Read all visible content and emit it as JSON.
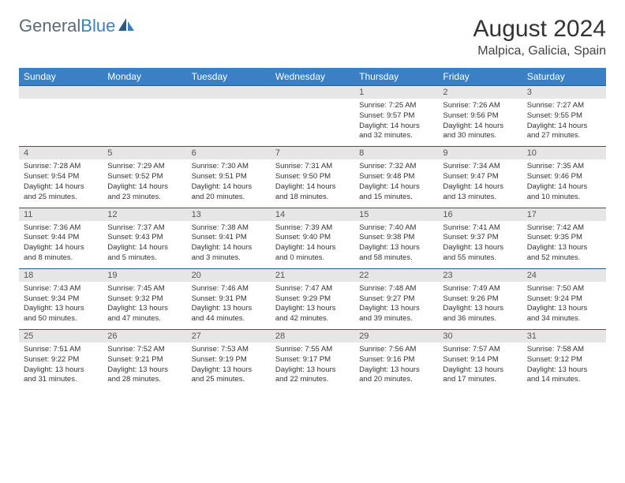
{
  "logo": {
    "text1": "General",
    "text2": "Blue"
  },
  "title": "August 2024",
  "location": "Malpica, Galicia, Spain",
  "colors": {
    "header_bg": "#3b7fc4",
    "header_text": "#ffffff",
    "day_num_bg": "#e6e6e6",
    "border": "#2a5a8a",
    "logo_gray": "#5a6a7a",
    "logo_blue": "#3b7fc4"
  },
  "weekdays": [
    "Sunday",
    "Monday",
    "Tuesday",
    "Wednesday",
    "Thursday",
    "Friday",
    "Saturday"
  ],
  "days": [
    {
      "n": "",
      "sunrise": "",
      "sunset": "",
      "daylight": ""
    },
    {
      "n": "",
      "sunrise": "",
      "sunset": "",
      "daylight": ""
    },
    {
      "n": "",
      "sunrise": "",
      "sunset": "",
      "daylight": ""
    },
    {
      "n": "",
      "sunrise": "",
      "sunset": "",
      "daylight": ""
    },
    {
      "n": "1",
      "sunrise": "Sunrise: 7:25 AM",
      "sunset": "Sunset: 9:57 PM",
      "daylight": "Daylight: 14 hours and 32 minutes."
    },
    {
      "n": "2",
      "sunrise": "Sunrise: 7:26 AM",
      "sunset": "Sunset: 9:56 PM",
      "daylight": "Daylight: 14 hours and 30 minutes."
    },
    {
      "n": "3",
      "sunrise": "Sunrise: 7:27 AM",
      "sunset": "Sunset: 9:55 PM",
      "daylight": "Daylight: 14 hours and 27 minutes."
    },
    {
      "n": "4",
      "sunrise": "Sunrise: 7:28 AM",
      "sunset": "Sunset: 9:54 PM",
      "daylight": "Daylight: 14 hours and 25 minutes."
    },
    {
      "n": "5",
      "sunrise": "Sunrise: 7:29 AM",
      "sunset": "Sunset: 9:52 PM",
      "daylight": "Daylight: 14 hours and 23 minutes."
    },
    {
      "n": "6",
      "sunrise": "Sunrise: 7:30 AM",
      "sunset": "Sunset: 9:51 PM",
      "daylight": "Daylight: 14 hours and 20 minutes."
    },
    {
      "n": "7",
      "sunrise": "Sunrise: 7:31 AM",
      "sunset": "Sunset: 9:50 PM",
      "daylight": "Daylight: 14 hours and 18 minutes."
    },
    {
      "n": "8",
      "sunrise": "Sunrise: 7:32 AM",
      "sunset": "Sunset: 9:48 PM",
      "daylight": "Daylight: 14 hours and 15 minutes."
    },
    {
      "n": "9",
      "sunrise": "Sunrise: 7:34 AM",
      "sunset": "Sunset: 9:47 PM",
      "daylight": "Daylight: 14 hours and 13 minutes."
    },
    {
      "n": "10",
      "sunrise": "Sunrise: 7:35 AM",
      "sunset": "Sunset: 9:46 PM",
      "daylight": "Daylight: 14 hours and 10 minutes."
    },
    {
      "n": "11",
      "sunrise": "Sunrise: 7:36 AM",
      "sunset": "Sunset: 9:44 PM",
      "daylight": "Daylight: 14 hours and 8 minutes."
    },
    {
      "n": "12",
      "sunrise": "Sunrise: 7:37 AM",
      "sunset": "Sunset: 9:43 PM",
      "daylight": "Daylight: 14 hours and 5 minutes."
    },
    {
      "n": "13",
      "sunrise": "Sunrise: 7:38 AM",
      "sunset": "Sunset: 9:41 PM",
      "daylight": "Daylight: 14 hours and 3 minutes."
    },
    {
      "n": "14",
      "sunrise": "Sunrise: 7:39 AM",
      "sunset": "Sunset: 9:40 PM",
      "daylight": "Daylight: 14 hours and 0 minutes."
    },
    {
      "n": "15",
      "sunrise": "Sunrise: 7:40 AM",
      "sunset": "Sunset: 9:38 PM",
      "daylight": "Daylight: 13 hours and 58 minutes."
    },
    {
      "n": "16",
      "sunrise": "Sunrise: 7:41 AM",
      "sunset": "Sunset: 9:37 PM",
      "daylight": "Daylight: 13 hours and 55 minutes."
    },
    {
      "n": "17",
      "sunrise": "Sunrise: 7:42 AM",
      "sunset": "Sunset: 9:35 PM",
      "daylight": "Daylight: 13 hours and 52 minutes."
    },
    {
      "n": "18",
      "sunrise": "Sunrise: 7:43 AM",
      "sunset": "Sunset: 9:34 PM",
      "daylight": "Daylight: 13 hours and 50 minutes."
    },
    {
      "n": "19",
      "sunrise": "Sunrise: 7:45 AM",
      "sunset": "Sunset: 9:32 PM",
      "daylight": "Daylight: 13 hours and 47 minutes."
    },
    {
      "n": "20",
      "sunrise": "Sunrise: 7:46 AM",
      "sunset": "Sunset: 9:31 PM",
      "daylight": "Daylight: 13 hours and 44 minutes."
    },
    {
      "n": "21",
      "sunrise": "Sunrise: 7:47 AM",
      "sunset": "Sunset: 9:29 PM",
      "daylight": "Daylight: 13 hours and 42 minutes."
    },
    {
      "n": "22",
      "sunrise": "Sunrise: 7:48 AM",
      "sunset": "Sunset: 9:27 PM",
      "daylight": "Daylight: 13 hours and 39 minutes."
    },
    {
      "n": "23",
      "sunrise": "Sunrise: 7:49 AM",
      "sunset": "Sunset: 9:26 PM",
      "daylight": "Daylight: 13 hours and 36 minutes."
    },
    {
      "n": "24",
      "sunrise": "Sunrise: 7:50 AM",
      "sunset": "Sunset: 9:24 PM",
      "daylight": "Daylight: 13 hours and 34 minutes."
    },
    {
      "n": "25",
      "sunrise": "Sunrise: 7:51 AM",
      "sunset": "Sunset: 9:22 PM",
      "daylight": "Daylight: 13 hours and 31 minutes."
    },
    {
      "n": "26",
      "sunrise": "Sunrise: 7:52 AM",
      "sunset": "Sunset: 9:21 PM",
      "daylight": "Daylight: 13 hours and 28 minutes."
    },
    {
      "n": "27",
      "sunrise": "Sunrise: 7:53 AM",
      "sunset": "Sunset: 9:19 PM",
      "daylight": "Daylight: 13 hours and 25 minutes."
    },
    {
      "n": "28",
      "sunrise": "Sunrise: 7:55 AM",
      "sunset": "Sunset: 9:17 PM",
      "daylight": "Daylight: 13 hours and 22 minutes."
    },
    {
      "n": "29",
      "sunrise": "Sunrise: 7:56 AM",
      "sunset": "Sunset: 9:16 PM",
      "daylight": "Daylight: 13 hours and 20 minutes."
    },
    {
      "n": "30",
      "sunrise": "Sunrise: 7:57 AM",
      "sunset": "Sunset: 9:14 PM",
      "daylight": "Daylight: 13 hours and 17 minutes."
    },
    {
      "n": "31",
      "sunrise": "Sunrise: 7:58 AM",
      "sunset": "Sunset: 9:12 PM",
      "daylight": "Daylight: 13 hours and 14 minutes."
    }
  ]
}
